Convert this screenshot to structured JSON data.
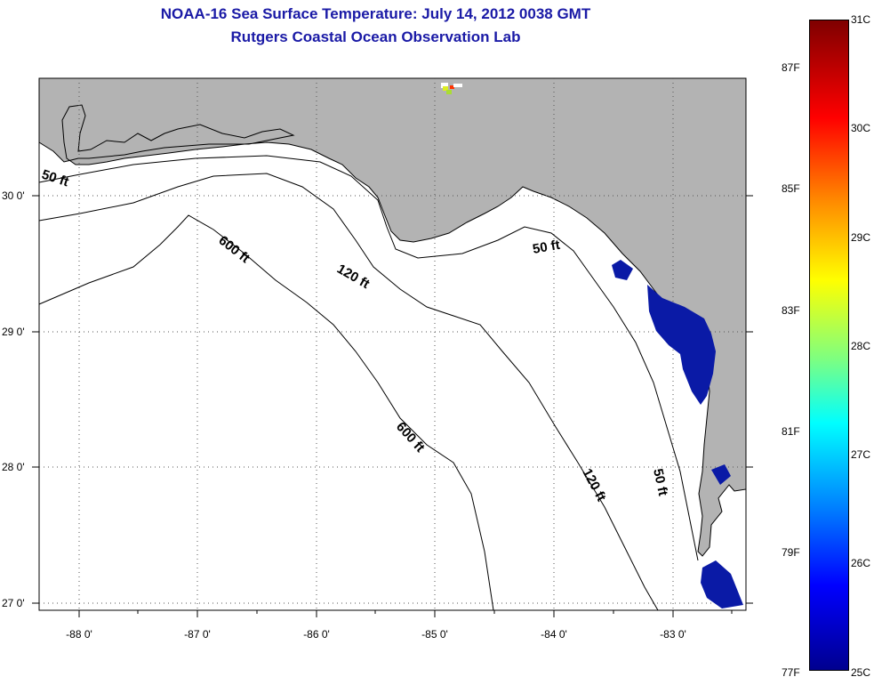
{
  "title_line1": "NOAA-16 Sea Surface Temperature:  July 14, 2012 0038 GMT",
  "title_line2": "Rutgers Coastal Ocean Observation Lab",
  "lat_labels": [
    "30 0'",
    "29 0'",
    "28 0'",
    "27 0'"
  ],
  "lon_labels": [
    "-88 0'",
    "-87 0'",
    "-86 0'",
    "-85 0'",
    "-84 0'",
    "-83 0'"
  ],
  "contour_labels": {
    "c50_west": "50 ft",
    "c600_north": "600 ft",
    "c120_north": "120 ft",
    "c50_big_bend": "50 ft",
    "c600_south": "600 ft",
    "c120_south": "120 ft",
    "c50_south": "50 ft"
  },
  "colorbar": {
    "celsius": [
      "31C",
      "30C",
      "29C",
      "28C",
      "27C",
      "26C",
      "25C"
    ],
    "fahrenheit": [
      "87F",
      "85F",
      "83F",
      "81F",
      "79F",
      "77F"
    ]
  },
  "colors": {
    "land": "#b3b3b3",
    "sst_cold": "#0a1aa6",
    "title": "#1a1aa6"
  }
}
